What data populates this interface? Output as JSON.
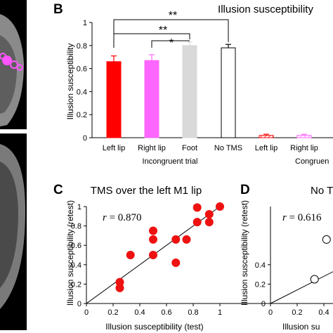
{
  "figure": {
    "panel_b": "B",
    "panel_c": "C",
    "panel_d": "D"
  },
  "chart_data": [
    {
      "type": "bar",
      "panel": "B",
      "title": "Illusion susceptibility",
      "ylabel": "Illusion susceptibility",
      "ylim": [
        0,
        1
      ],
      "yticks": [
        "0",
        "0.2",
        "0.4",
        "0.6",
        "0.8",
        "1"
      ],
      "categories": [
        "Left lip",
        "Right lip",
        "Foot",
        "No TMS",
        "Left lip",
        "Right lip"
      ],
      "values": [
        0.66,
        0.67,
        0.8,
        0.78,
        0.02,
        0.02
      ],
      "errors": [
        0.05,
        0.05,
        0.03,
        0.03,
        0.01,
        0.01
      ],
      "colors": [
        "#ff0000",
        "#ff66ff",
        "#d9d9d9",
        "#ffffff",
        "#ff0000",
        "#ff66ff"
      ],
      "hatched": [
        false,
        false,
        false,
        false,
        true,
        true
      ],
      "group_labels": [
        "Incongruent trial",
        "Congruen"
      ],
      "significance": [
        {
          "from": "Left lip",
          "to": "Foot",
          "label": "*"
        },
        {
          "from": "Left lip",
          "to": "Foot",
          "label": "**"
        },
        {
          "from": "Left lip",
          "to": "No TMS",
          "label": "**"
        }
      ]
    },
    {
      "type": "scatter",
      "panel": "C",
      "title": "TMS over the left M1 lip",
      "xlabel": "Illusion susceptibility (test)",
      "ylabel": "Illusion susceptibility (retest)",
      "xlim": [
        0,
        1
      ],
      "ylim": [
        0,
        1
      ],
      "ticks": [
        "0",
        "0.2",
        "0.4",
        "0.6",
        "0.8",
        "1"
      ],
      "annotation": {
        "r_label": "r",
        "r_value": " = 0.870"
      },
      "points": [
        [
          0.25,
          0.16
        ],
        [
          0.25,
          0.22
        ],
        [
          0.33,
          0.5
        ],
        [
          0.5,
          0.5
        ],
        [
          0.5,
          0.66
        ],
        [
          0.5,
          0.75
        ],
        [
          0.67,
          0.42
        ],
        [
          0.67,
          0.66
        ],
        [
          0.75,
          0.66
        ],
        [
          0.83,
          0.84
        ],
        [
          0.83,
          0.99
        ],
        [
          0.92,
          0.92
        ],
        [
          0.92,
          0.84
        ],
        [
          1.0,
          1.0
        ]
      ],
      "regression_line": [
        [
          0.0,
          0.0
        ],
        [
          1.0,
          1.0
        ]
      ],
      "color": "#ee1111"
    },
    {
      "type": "scatter",
      "panel": "D",
      "title": "No T",
      "xlabel": "Illusion su",
      "ylabel": "Illusion susceptibility (retest)",
      "xlim": [
        0,
        1
      ],
      "ylim": [
        0,
        1
      ],
      "ticks": [
        "0",
        "0.2",
        "0.4"
      ],
      "annotation": {
        "r_label": "r",
        "r_value": " = 0.616"
      },
      "points": [
        [
          0.33,
          0.25
        ],
        [
          0.42,
          0.66
        ]
      ],
      "regression_line": [
        [
          0.0,
          0.0
        ],
        [
          1.0,
          0.7
        ]
      ],
      "color": "#ffffff"
    }
  ]
}
